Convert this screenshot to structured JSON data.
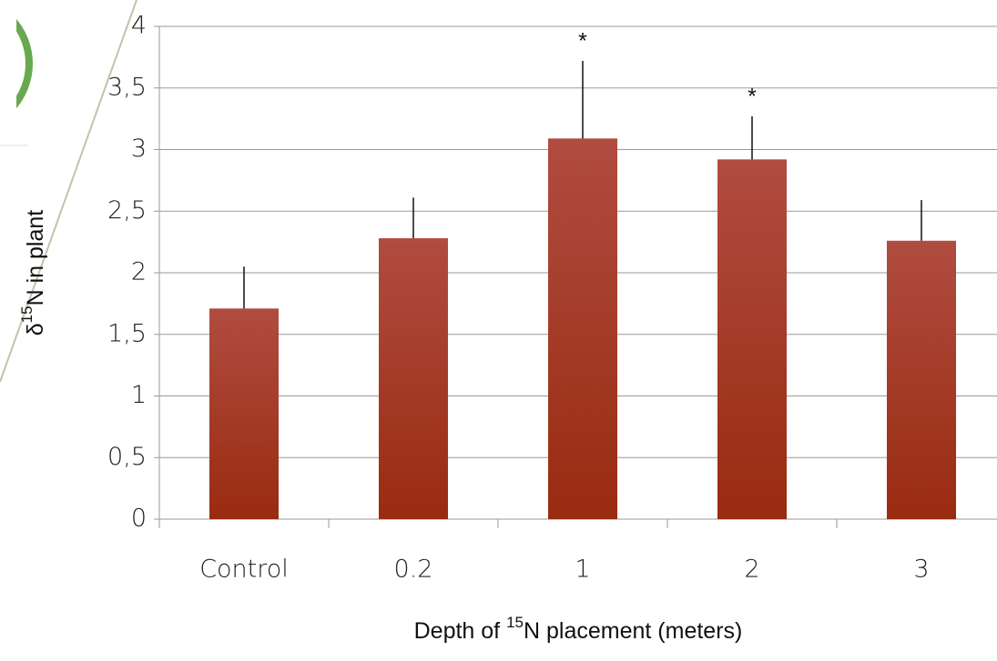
{
  "chart_data": {
    "type": "bar",
    "categories": [
      "Control",
      "0.2",
      "1",
      "2",
      "3"
    ],
    "values": [
      1.71,
      2.28,
      3.09,
      2.92,
      2.26
    ],
    "errors": [
      0.34,
      0.33,
      0.63,
      0.35,
      0.33
    ],
    "color": "#b04c40",
    "ylim": [
      0,
      4
    ],
    "yticks": [
      0,
      {
        "value": 0.5,
        "label": "0,5"
      },
      1,
      {
        "value": 1.5,
        "label": "1,5"
      },
      2,
      {
        "value": 2.5,
        "label": "2,5"
      },
      3,
      {
        "value": 3.5,
        "label": "3,5"
      },
      4
    ],
    "grid": true,
    "y_label": {
      "prefix": "δ",
      "sup": "15",
      "rest": "N in plant"
    },
    "x_label": {
      "prefix": "Depth of ",
      "sup": "15",
      "rest": "N placement (meters)"
    },
    "annotations": [
      {
        "text": "*",
        "category": "1"
      },
      {
        "text": "*",
        "category": "2"
      }
    ]
  }
}
